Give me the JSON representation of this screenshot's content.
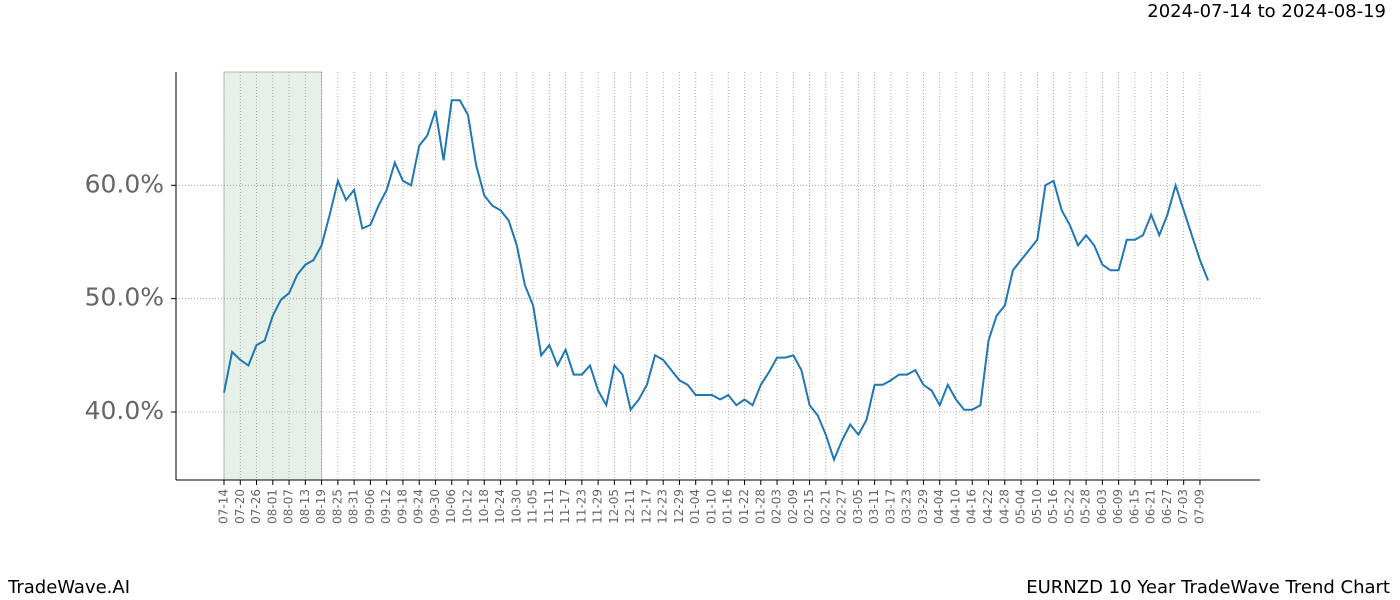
{
  "chart_data": {
    "type": "line",
    "title": "EURNZD 10 Year TradeWave Trend Chart",
    "subtitle": "2024-07-14 to 2024-08-19",
    "brand": "TradeWave.AI",
    "categories": [
      "07-14",
      null,
      "07-20",
      null,
      "07-26",
      null,
      "08-01",
      null,
      "08-07",
      null,
      "08-13",
      null,
      "08-19",
      null,
      "08-25",
      null,
      "08-31",
      null,
      "09-06",
      null,
      "09-12",
      null,
      "09-18",
      null,
      "09-24",
      null,
      "09-30",
      null,
      "10-06",
      null,
      "10-12",
      null,
      "10-18",
      null,
      "10-24",
      null,
      "10-30",
      null,
      "11-05",
      null,
      "11-11",
      null,
      "11-17",
      null,
      "11-23",
      null,
      "11-29",
      null,
      "12-05",
      null,
      "12-11",
      null,
      "12-17",
      null,
      "12-23",
      null,
      "12-29",
      null,
      "01-04",
      null,
      "01-10",
      null,
      "01-16",
      null,
      "01-22",
      null,
      "01-28",
      null,
      "02-03",
      null,
      "02-09",
      null,
      "02-15",
      null,
      "02-21",
      null,
      "02-27",
      null,
      "03-05",
      null,
      "03-11",
      null,
      "03-17",
      null,
      "03-23",
      null,
      "03-29",
      null,
      "04-04",
      null,
      "04-10",
      null,
      "04-16",
      null,
      "04-22",
      null,
      "04-28",
      null,
      "05-04",
      null,
      "05-10",
      null,
      "05-16",
      null,
      "05-22",
      null,
      "05-28",
      null,
      "06-03",
      null,
      "06-09",
      null,
      "06-15",
      null,
      "06-21",
      null,
      "06-27",
      null,
      "07-03",
      null,
      "07-09",
      null
    ],
    "values": [
      41.7,
      45.3,
      44.6,
      44.1,
      45.9,
      46.3,
      48.5,
      49.9,
      50.5,
      52.1,
      53.0,
      53.4,
      54.7,
      57.4,
      60.4,
      58.7,
      59.6,
      56.2,
      56.5,
      58.2,
      59.6,
      62.0,
      60.4,
      60.0,
      63.5,
      64.4,
      66.6,
      62.2,
      67.5,
      67.5,
      66.2,
      61.8,
      59.1,
      58.2,
      57.8,
      56.9,
      54.7,
      51.2,
      49.4,
      45.0,
      45.9,
      44.1,
      45.5,
      43.3,
      43.3,
      44.1,
      41.9,
      40.6,
      44.1,
      43.3,
      40.2,
      41.1,
      42.4,
      45.0,
      44.6,
      43.7,
      42.8,
      42.4,
      41.5,
      41.5,
      41.5,
      41.1,
      41.5,
      40.6,
      41.1,
      40.6,
      42.4,
      43.5,
      44.8,
      44.8,
      45.0,
      43.7,
      40.6,
      39.7,
      38.0,
      35.8,
      37.5,
      38.9,
      38.0,
      39.3,
      42.4,
      42.4,
      42.8,
      43.3,
      43.3,
      43.7,
      42.4,
      41.9,
      40.6,
      42.4,
      41.1,
      40.2,
      40.2,
      40.6,
      46.3,
      48.5,
      49.4,
      52.5,
      53.4,
      54.3,
      55.2,
      60.0,
      60.4,
      57.8,
      56.5,
      54.7,
      55.6,
      54.7,
      53.0,
      52.5,
      52.5,
      55.2,
      55.2,
      55.6,
      57.4,
      55.6,
      57.4,
      60.0,
      57.8,
      55.6,
      53.4,
      51.6
    ],
    "color": "#1f77b4",
    "highlight_color": "#e6f0e6",
    "ylim": [
      34,
      70
    ],
    "yticks": [
      {
        "value": 40,
        "label": "40.0%"
      },
      {
        "value": 50,
        "label": "50.0%"
      },
      {
        "value": 60,
        "label": "60.0%"
      }
    ],
    "grid": true
  }
}
